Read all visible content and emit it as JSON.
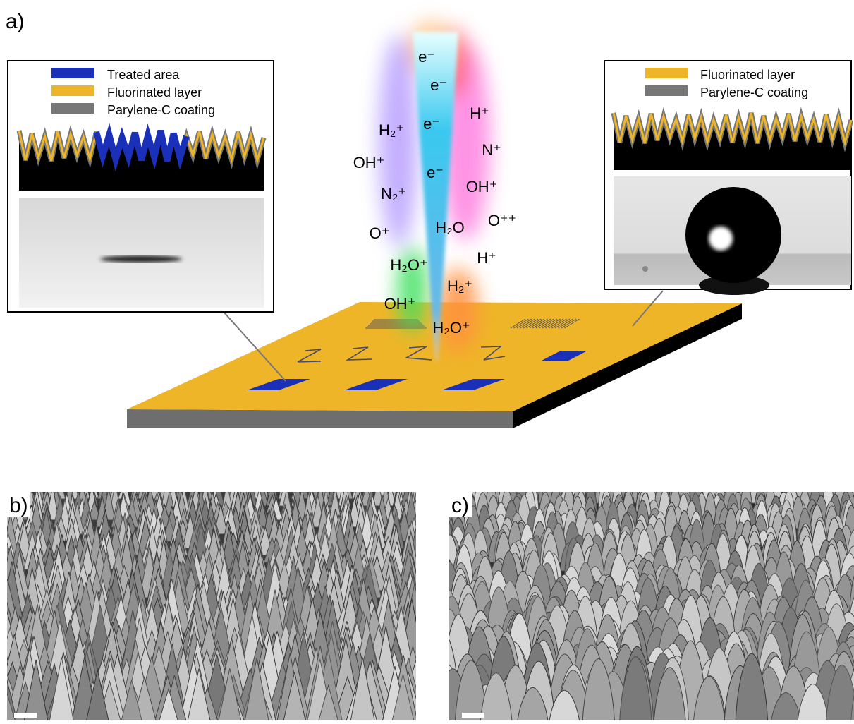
{
  "panels": {
    "a": {
      "label": "a)",
      "left_inset": {
        "legend": [
          "Treated area",
          "Fluorinated layer",
          "Parylene-C coating"
        ]
      },
      "right_inset": {
        "legend": [
          "Fluorinated layer",
          "Parylene-C coating"
        ]
      },
      "species": [
        "e⁻",
        "e⁻",
        "H⁺",
        "H₂⁺",
        "e⁻",
        "N⁺",
        "OH⁺",
        "e⁻",
        "OH⁺",
        "N₂⁺",
        "O⁺⁺",
        "O⁺",
        "H₂O",
        "H⁺",
        "H₂O⁺",
        "H₂⁺",
        "OH⁺",
        "H₂O⁺"
      ]
    },
    "b": {
      "label": "b)"
    },
    "c": {
      "label": "c)"
    }
  }
}
